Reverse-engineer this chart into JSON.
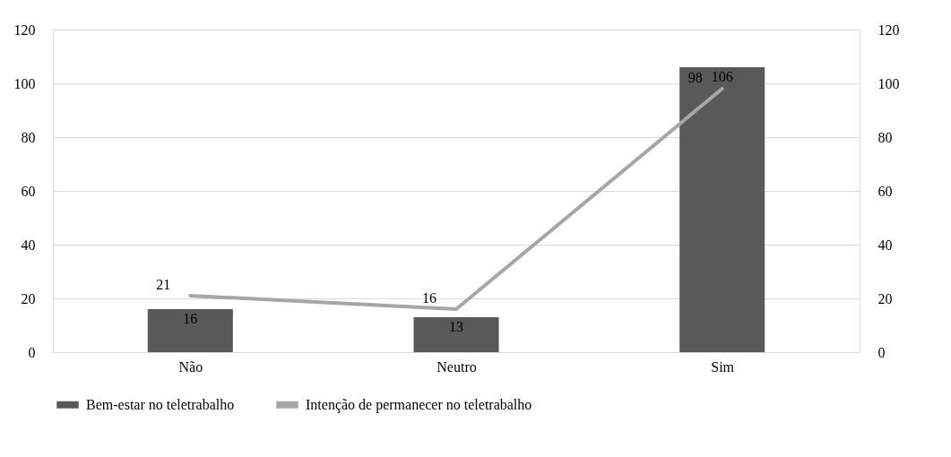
{
  "chart_data": {
    "type": "bar",
    "categories": [
      "Não",
      "Neutro",
      "Sim"
    ],
    "series": [
      {
        "name": "Bem-estar no teletrabalho",
        "color": "#595959",
        "values": [
          16,
          13,
          106
        ]
      },
      {
        "name": "Intenção de permanecer no teletrabalho",
        "type": "line",
        "axis": "y2",
        "color": "#a6a6a6",
        "values": [
          21,
          16,
          98
        ]
      }
    ],
    "ylim": [
      0,
      120
    ],
    "yticks": [
      0,
      20,
      40,
      60,
      80,
      100,
      120
    ],
    "y2lim": [
      0,
      120
    ],
    "y2ticks": [
      0,
      20,
      40,
      60,
      80,
      100,
      120
    ],
    "grid": "y",
    "legend": "bottom",
    "data_labels": true,
    "marker": "none",
    "line_style": "solid"
  }
}
